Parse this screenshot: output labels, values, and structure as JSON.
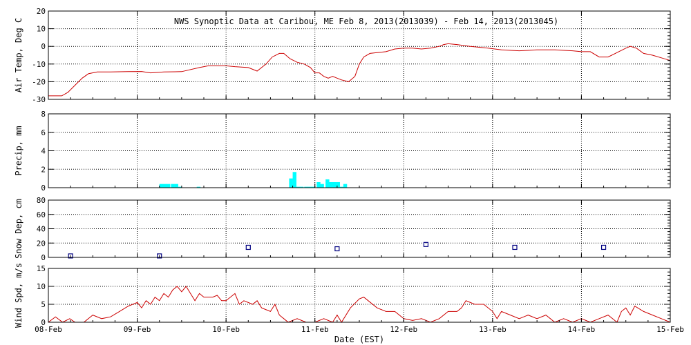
{
  "chart_data": {
    "title": "NWS Synoptic Data at Caribou, ME   Feb  8, 2013(2013039) - Feb 14, 2013(2013045)",
    "xlabel": "Date (EST)",
    "x_tick_labels": [
      "08-Feb",
      "09-Feb",
      "10-Feb",
      "11-Feb",
      "12-Feb",
      "13-Feb",
      "14-Feb",
      "15-Feb"
    ],
    "xlim_days": [
      0,
      7
    ],
    "colors": {
      "air_temp": "#cc0000",
      "precip": "#00ffff",
      "snow": "#000080",
      "wind": "#cc0000"
    },
    "panels": [
      {
        "id": "airtemp",
        "type": "line",
        "ylabel": "Air Temp, Deg C",
        "ylim": [
          -30,
          20
        ],
        "yticks": [
          -30,
          -20,
          -10,
          0,
          10,
          20
        ],
        "series": [
          {
            "x": [
              0,
              0.08,
              0.15,
              0.22,
              0.3,
              0.38,
              0.45,
              0.55,
              0.7,
              0.9,
              1.05,
              1.15,
              1.3,
              1.5,
              1.7,
              1.8,
              1.9,
              2.0,
              2.1,
              2.25,
              2.35,
              2.45,
              2.52,
              2.6,
              2.65,
              2.72,
              2.8,
              2.88,
              2.95,
              3.0,
              3.05,
              3.1,
              3.15,
              3.2,
              3.25,
              3.3,
              3.38,
              3.45,
              3.5,
              3.55,
              3.62,
              3.7,
              3.8,
              3.9,
              4.0,
              4.1,
              4.2,
              4.3,
              4.4,
              4.45,
              4.5,
              4.6,
              4.75,
              4.95,
              5.1,
              5.3,
              5.5,
              5.7,
              5.9,
              6.0,
              6.1,
              6.2,
              6.3,
              6.4,
              6.5,
              6.55,
              6.62,
              6.7,
              6.8,
              6.9,
              7.0
            ],
            "y": [
              -28,
              -28,
              -28,
              -26,
              -22,
              -18,
              -15.5,
              -14.5,
              -14.5,
              -14.3,
              -14.2,
              -15,
              -14.5,
              -14.3,
              -12,
              -11,
              -11,
              -11,
              -11.5,
              -12,
              -14,
              -10,
              -6,
              -4,
              -4,
              -7,
              -9,
              -10,
              -12,
              -15,
              -15,
              -17,
              -18,
              -17,
              -18,
              -19,
              -20,
              -17,
              -10,
              -6,
              -4,
              -3.5,
              -3,
              -1.5,
              -1,
              -1,
              -1.5,
              -1,
              0,
              1,
              1.5,
              1,
              0,
              -1,
              -2,
              -2.5,
              -2,
              -2,
              -2.5,
              -3,
              -3,
              -6,
              -6,
              -3.5,
              -1,
              0,
              -1,
              -4,
              -5,
              -6.5,
              -8
            ]
          }
        ]
      },
      {
        "id": "precip",
        "type": "bar",
        "ylabel": "Precip, mm",
        "ylim": [
          0,
          8
        ],
        "yticks": [
          0,
          2,
          4,
          6,
          8
        ],
        "bar_width_days": 0.042,
        "bars": {
          "x": [
            1.25,
            1.29,
            1.33,
            1.38,
            1.42,
            1.46,
            1.67,
            2.71,
            2.75,
            2.79,
            2.83,
            2.88,
            2.92,
            2.96,
            3.02,
            3.06,
            3.12,
            3.16,
            3.2,
            3.24,
            3.28,
            3.32
          ],
          "y": [
            0.4,
            0.4,
            0.4,
            0.4,
            0.4,
            0.1,
            0.1,
            1.0,
            1.7,
            0.1,
            0.1,
            0.1,
            0.1,
            0.1,
            0.6,
            0.4,
            0.9,
            0.6,
            0.6,
            0.6,
            0.1,
            0.4
          ]
        }
      },
      {
        "id": "snow",
        "type": "scatter",
        "ylabel": "Snow Dep, cm",
        "ylim": [
          0,
          80
        ],
        "yticks": [
          0,
          20,
          40,
          60,
          80
        ],
        "series": [
          {
            "x": [
              0.25,
              1.25,
              2.25,
              3.25,
              4.25,
              5.25,
              6.25
            ],
            "y": [
              2,
              2,
              14,
              12,
              18,
              14,
              14
            ]
          }
        ]
      },
      {
        "id": "wind",
        "type": "line",
        "ylabel": "Wind Spd, m/s",
        "ylim": [
          0,
          15
        ],
        "yticks": [
          0,
          5,
          10,
          15
        ],
        "series": [
          {
            "x": [
              0,
              0.08,
              0.16,
              0.24,
              0.3,
              0.4,
              0.5,
              0.6,
              0.7,
              0.8,
              0.9,
              1.0,
              1.05,
              1.1,
              1.15,
              1.2,
              1.25,
              1.3,
              1.35,
              1.4,
              1.45,
              1.5,
              1.55,
              1.6,
              1.65,
              1.7,
              1.75,
              1.8,
              1.85,
              1.9,
              1.95,
              2.0,
              2.1,
              2.15,
              2.2,
              2.3,
              2.35,
              2.4,
              2.5,
              2.55,
              2.6,
              2.65,
              2.7,
              2.8,
              2.9,
              3.0,
              3.1,
              3.2,
              3.25,
              3.3,
              3.4,
              3.5,
              3.55,
              3.6,
              3.7,
              3.8,
              3.9,
              4.0,
              4.1,
              4.2,
              4.3,
              4.4,
              4.5,
              4.6,
              4.65,
              4.7,
              4.8,
              4.9,
              5.0,
              5.05,
              5.1,
              5.2,
              5.3,
              5.4,
              5.5,
              5.6,
              5.7,
              5.8,
              5.9,
              6.0,
              6.1,
              6.2,
              6.3,
              6.4,
              6.45,
              6.5,
              6.55,
              6.6,
              6.7,
              6.8,
              6.9,
              7.0
            ],
            "y": [
              0,
              1.5,
              0,
              1,
              0,
              0,
              2,
              1,
              1.5,
              3,
              4.5,
              5.5,
              4,
              6,
              5,
              7,
              6,
              8,
              7,
              9,
              10,
              8.5,
              10,
              8,
              6,
              8,
              7,
              7,
              7,
              7.5,
              6,
              6,
              8,
              5,
              6,
              5,
              6,
              4,
              3,
              5,
              2,
              1,
              0,
              1,
              0,
              0,
              1,
              0,
              2,
              0,
              4,
              6.5,
              7,
              6,
              4,
              3,
              3,
              1,
              0.5,
              1,
              0,
              1,
              3,
              3,
              4,
              6,
              5,
              5,
              3,
              1,
              3,
              2,
              1,
              2,
              1,
              2,
              0,
              1,
              0,
              1,
              0,
              1,
              2,
              0,
              3,
              4,
              2,
              4.5,
              3,
              2,
              1,
              0
            ]
          }
        ]
      }
    ]
  }
}
